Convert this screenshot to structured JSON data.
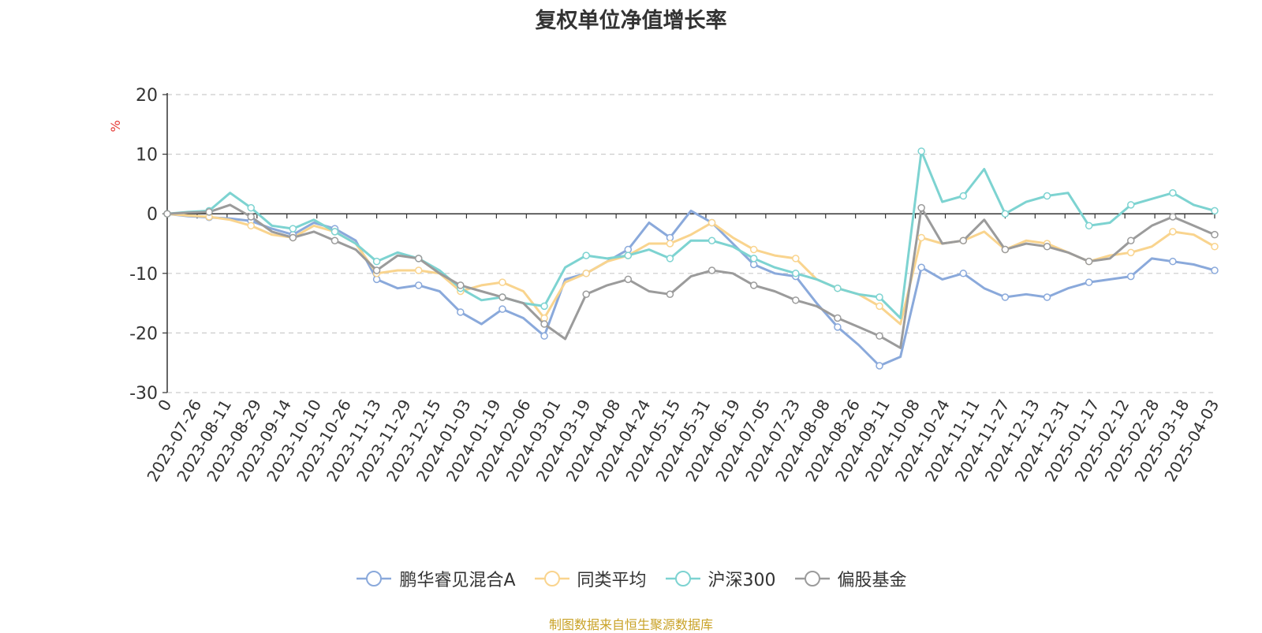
{
  "chart_data": {
    "type": "line",
    "title": "复权单位净值增长率",
    "ylabel": "%",
    "xlabel": "",
    "ylim": [
      -30,
      20
    ],
    "yticks": [
      "20",
      "10",
      "0",
      "-10",
      "-20",
      "-30"
    ],
    "ytick_values": [
      20,
      10,
      0,
      -10,
      -20,
      -30
    ],
    "x_tick_labels": [
      "0",
      "2023-07-26",
      "2023-08-11",
      "2023-08-29",
      "2023-09-14",
      "2023-10-10",
      "2023-10-26",
      "2023-11-13",
      "2023-11-29",
      "2023-12-15",
      "2024-01-03",
      "2024-01-19",
      "2024-02-06",
      "2024-03-01",
      "2024-03-19",
      "2024-04-08",
      "2024-04-24",
      "2024-05-15",
      "2024-05-31",
      "2024-06-19",
      "2024-07-05",
      "2024-07-23",
      "2024-08-08",
      "2024-08-26",
      "2024-09-11",
      "2024-10-08",
      "2024-10-24",
      "2024-11-11",
      "2024-11-27",
      "2024-12-13",
      "2024-12-31",
      "2025-01-17",
      "2025-02-12",
      "2025-02-28",
      "2025-03-18",
      "2025-04-03"
    ],
    "grid": "horizontal-dashed",
    "legend_position": "bottom-center",
    "series": [
      {
        "name": "鹏华睿见混合A",
        "color": "#8aa9db",
        "values": [
          0,
          -0.4,
          -0.6,
          -0.8,
          -1.2,
          -2.5,
          -3.5,
          -1.5,
          -2.5,
          -4.5,
          -11,
          -12.5,
          -12,
          -13,
          -16.5,
          -18.5,
          -16,
          -17.5,
          -20.5,
          -11,
          -10,
          -8,
          -6,
          -1.5,
          -4,
          0.5,
          -1.5,
          -5,
          -8.5,
          -10,
          -10.5,
          -15,
          -19,
          -22,
          -25.5,
          -24,
          -9,
          -11,
          -10,
          -12.5,
          -14,
          -13.5,
          -14,
          -12.5,
          -11.5,
          -11,
          -10.5,
          -7.5,
          -8,
          -8.5,
          -9.5
        ]
      },
      {
        "name": "同类平均",
        "color": "#f9d48e",
        "values": [
          0,
          -0.3,
          -0.5,
          -1,
          -2,
          -3.5,
          -4,
          -2,
          -3,
          -5,
          -10,
          -9.5,
          -9.5,
          -10,
          -13,
          -12,
          -11.5,
          -13,
          -17.5,
          -11.5,
          -10,
          -8,
          -7,
          -5,
          -5,
          -3.5,
          -1.5,
          -4,
          -6,
          -7,
          -7.5,
          -11,
          -12.5,
          -13.5,
          -15.5,
          -18.5,
          -4,
          -5,
          -4.5,
          -3,
          -6,
          -4.5,
          -5,
          -6.5,
          -8,
          -7,
          -6.5,
          -5.5,
          -3,
          -3.5,
          -5.5
        ]
      },
      {
        "name": "沪深300",
        "color": "#7dd3d1",
        "values": [
          0,
          0.3,
          0.5,
          3.5,
          1,
          -2,
          -2.5,
          -1,
          -3,
          -5,
          -8,
          -6.5,
          -7.5,
          -9.5,
          -12.5,
          -14.5,
          -14,
          -15,
          -15.5,
          -9,
          -7,
          -7.5,
          -7,
          -6,
          -7.5,
          -4.5,
          -4.5,
          -5.5,
          -7.5,
          -9,
          -10,
          -11,
          -12.5,
          -13.5,
          -14,
          -17.5,
          10.5,
          2,
          3,
          7.5,
          0,
          2,
          3,
          3.5,
          -2,
          -1.5,
          1.5,
          2.5,
          3.5,
          1.5,
          0.5
        ]
      },
      {
        "name": "偏股基金",
        "color": "#9b9b9b",
        "values": [
          0,
          0.2,
          0.3,
          1.5,
          -0.5,
          -3,
          -4,
          -3,
          -4.5,
          -6,
          -9.5,
          -7,
          -7.5,
          -10,
          -12,
          -13,
          -14,
          -15,
          -18.5,
          -21,
          -13.5,
          -12,
          -11,
          -13,
          -13.5,
          -10.5,
          -9.5,
          -10,
          -12,
          -13,
          -14.5,
          -15.5,
          -17.5,
          -19,
          -20.5,
          -22.5,
          1,
          -5,
          -4.5,
          -1,
          -6,
          -5,
          -5.5,
          -6.5,
          -8,
          -7.5,
          -4.5,
          -2,
          -0.5,
          -2,
          -3.5
        ]
      }
    ],
    "marker_indices": [
      0,
      2,
      4,
      6,
      8,
      10,
      12,
      14,
      16,
      18,
      20,
      22,
      24,
      26,
      28,
      30,
      32,
      34,
      36,
      38,
      40,
      42,
      44,
      46,
      48,
      50
    ]
  },
  "source_note": "制图数据来自恒生聚源数据库"
}
